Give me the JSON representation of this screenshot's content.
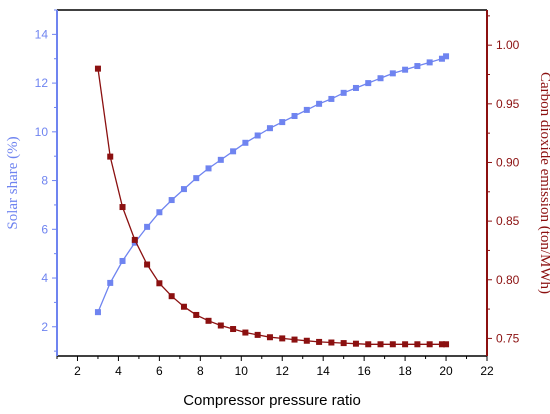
{
  "chart_data": {
    "type": "line",
    "xlabel": "Compressor pressure ratio",
    "xlim": [
      1,
      22
    ],
    "xticks": [
      "2",
      "4",
      "6",
      "8",
      "10",
      "12",
      "14",
      "16",
      "18",
      "20",
      "22"
    ],
    "ylabel_left": "Solar share (%)",
    "ylim_left": [
      0.8,
      15
    ],
    "yticks_left": [
      "2",
      "4",
      "6",
      "8",
      "10",
      "12",
      "14"
    ],
    "ylabel_right": "Carbon dioxide emission (ton/MWh)",
    "ylim_right": [
      0.735,
      1.03
    ],
    "yticks_right": [
      "0.75",
      "0.80",
      "0.85",
      "0.90",
      "0.95",
      "1.00"
    ],
    "left_color": "#6f84f0",
    "right_color": "#8b1010",
    "grid": false,
    "x": [
      3.0,
      3.6,
      4.2,
      4.8,
      5.4,
      6.0,
      6.6,
      7.2,
      7.8,
      8.4,
      9.0,
      9.6,
      10.2,
      10.8,
      11.4,
      12.0,
      12.6,
      13.2,
      13.8,
      14.4,
      15.0,
      15.6,
      16.2,
      16.8,
      17.4,
      18.0,
      18.6,
      19.2,
      19.8,
      20.0
    ],
    "series": [
      {
        "axis": "left",
        "values": [
          2.6,
          3.8,
          4.7,
          5.45,
          6.1,
          6.7,
          7.2,
          7.65,
          8.1,
          8.5,
          8.85,
          9.2,
          9.55,
          9.85,
          10.15,
          10.4,
          10.65,
          10.9,
          11.15,
          11.35,
          11.6,
          11.8,
          12.0,
          12.2,
          12.4,
          12.55,
          12.7,
          12.85,
          13.0,
          13.1
        ]
      },
      {
        "axis": "right",
        "values": [
          0.98,
          0.905,
          0.862,
          0.834,
          0.813,
          0.797,
          0.786,
          0.777,
          0.77,
          0.765,
          0.761,
          0.758,
          0.755,
          0.753,
          0.751,
          0.75,
          0.749,
          0.748,
          0.747,
          0.7465,
          0.746,
          0.7455,
          0.745,
          0.745,
          0.745,
          0.745,
          0.745,
          0.745,
          0.745,
          0.745
        ]
      }
    ]
  }
}
